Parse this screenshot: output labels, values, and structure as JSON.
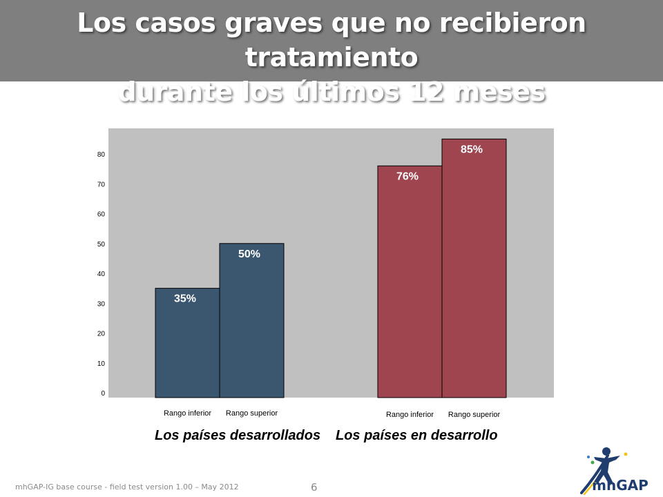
{
  "slide": {
    "title_line1": "Los casos graves que no recibieron tratamiento",
    "title_line2": "durante los últimos 12 meses",
    "footer": "mhGAP-IG base course -  field test version 1.00 – May 2012",
    "page_number": "6",
    "logo_text": "mhGAP"
  },
  "chart_data": {
    "type": "bar",
    "title": "",
    "xlabel": "",
    "ylabel": "",
    "ylim": [
      0,
      90
    ],
    "yticks": [
      0,
      10,
      20,
      30,
      40,
      50,
      60,
      70,
      80
    ],
    "plot_background": "#c0c0c0",
    "grid": false,
    "legend": "none",
    "groups": [
      {
        "label": "Los países desarrollados",
        "color": "#3b5770",
        "bars": [
          {
            "category": "Rango inferior",
            "value": 35,
            "label": "35%"
          },
          {
            "category": "Rango superior",
            "value": 50,
            "label": "50%"
          }
        ]
      },
      {
        "label": "Los países en desarrollo",
        "color": "#9e4550",
        "bars": [
          {
            "category": "Rango inferior",
            "value": 76,
            "label": "76%"
          },
          {
            "category": "Rango superior",
            "value": 85,
            "label": "85%"
          }
        ]
      }
    ]
  },
  "colors": {
    "title_bar": "#7f7f7f",
    "logo_blue": "#1f3d6e",
    "logo_dots": [
      "#f2c418",
      "#46a84a",
      "#3b7dc4",
      "#d53a32",
      "#8b4aa0"
    ]
  }
}
